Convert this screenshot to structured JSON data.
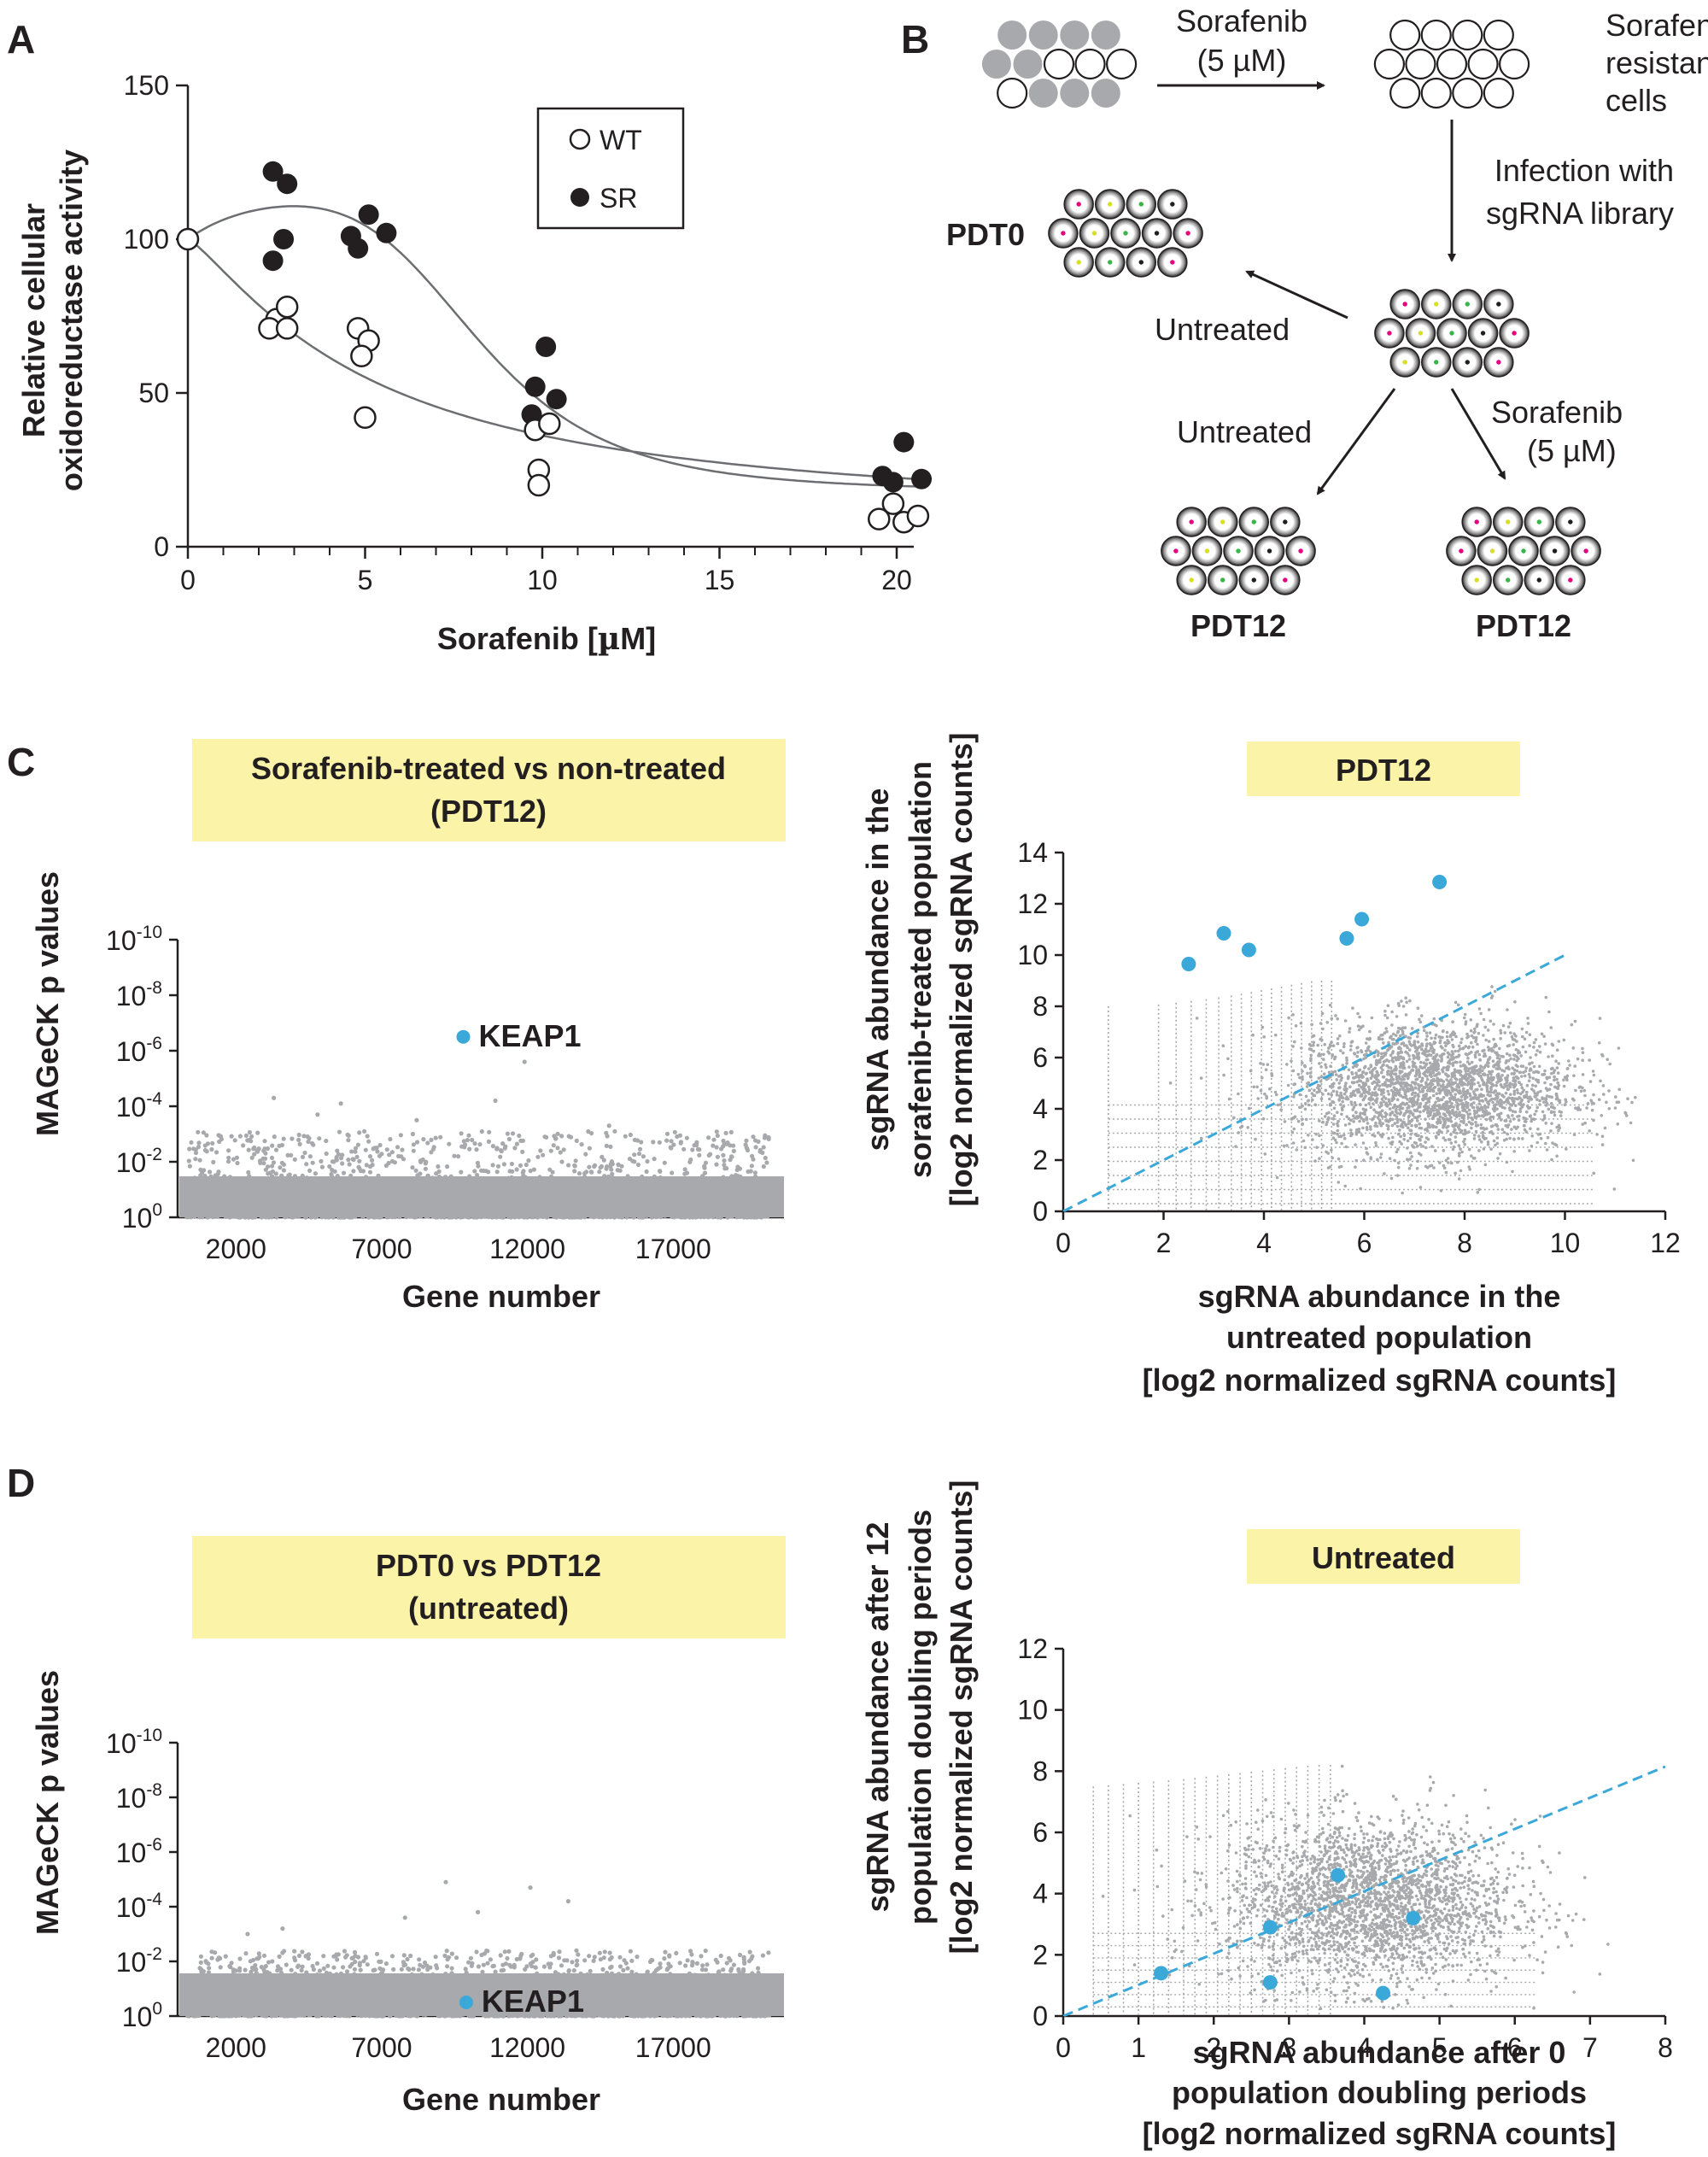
{
  "panels": {
    "a": "A",
    "b": "B",
    "c": "C",
    "d": "D"
  },
  "colors": {
    "accent": "#3aa8d8",
    "gray": "#a7a9ac",
    "highlight_box": "#fbf3a7",
    "ink": "#231f20"
  },
  "panelA": {
    "ylabel_line1": "Relative cellular",
    "ylabel_line2": "oxidoreductase activity",
    "xlabel_pre": "Sorafenib [",
    "xlabel_mu": "µ",
    "xlabel_post": "M]",
    "legend": {
      "wt": "WT",
      "sr": "SR"
    },
    "y_ticks": [
      "0",
      "50",
      "100",
      "150"
    ],
    "x_ticks": [
      "0",
      "5",
      "10",
      "15",
      "20"
    ]
  },
  "chart_data": [
    {
      "type": "scatter",
      "ylabel": "Relative cellular oxidoreductase activity",
      "xlabel": "Sorafenib [µM]",
      "xlim": [
        0,
        20
      ],
      "ylim": [
        0,
        150
      ],
      "x_ticks": [
        0,
        5,
        10,
        15,
        20
      ],
      "y_ticks": [
        0,
        50,
        100,
        150
      ],
      "legend_position": "top-right",
      "series": [
        {
          "name": "WT",
          "marker": "open-circle",
          "points": [
            [
              0,
              100
            ],
            [
              2.5,
              74
            ],
            [
              2.8,
              78
            ],
            [
              2.3,
              71
            ],
            [
              2.8,
              71
            ],
            [
              4.8,
              71
            ],
            [
              5.1,
              67
            ],
            [
              4.9,
              62
            ],
            [
              5,
              42
            ],
            [
              9.8,
              38
            ],
            [
              10.2,
              40
            ],
            [
              9.9,
              25
            ],
            [
              9.9,
              20
            ],
            [
              19.5,
              9
            ],
            [
              19.9,
              14
            ],
            [
              20.2,
              8
            ],
            [
              20.6,
              10
            ]
          ]
        },
        {
          "name": "SR",
          "marker": "filled-circle",
          "points": [
            [
              2.4,
              122
            ],
            [
              2.8,
              118
            ],
            [
              2.7,
              100
            ],
            [
              2.4,
              93
            ],
            [
              4.6,
              101
            ],
            [
              5.1,
              108
            ],
            [
              5.6,
              102
            ],
            [
              4.8,
              97
            ],
            [
              9.8,
              52
            ],
            [
              10.1,
              65
            ],
            [
              10.4,
              48
            ],
            [
              9.7,
              43
            ],
            [
              19.6,
              23
            ],
            [
              20.2,
              34
            ],
            [
              20.7,
              22
            ],
            [
              19.9,
              21
            ]
          ]
        }
      ],
      "fitted_curves": 2
    },
    {
      "type": "scatter",
      "title": "Sorafenib-treated vs non-treated (PDT12)",
      "ylabel": "MAGeCK p values",
      "xlabel": "Gene number",
      "x_ticks": [
        2000,
        7000,
        12000,
        17000
      ],
      "y_ticks": [
        "10^0",
        "10^-2",
        "10^-4",
        "10^-6",
        "10^-8",
        "10^-10"
      ],
      "y_scale": "negative-log10",
      "highlight": {
        "label": "KEAP1",
        "x": 9800,
        "y_exp": -6.5
      }
    },
    {
      "type": "scatter",
      "title": "PDT12",
      "ylabel": "sgRNA abundance in the sorafenib-treated population [log2 normalized sgRNA counts]",
      "xlabel": "sgRNA abundance in the untreated population [log2 normalized sgRNA counts]",
      "xlim": [
        0,
        12
      ],
      "ylim": [
        0,
        14
      ],
      "x_ticks": [
        0,
        2,
        4,
        6,
        8,
        10,
        12
      ],
      "y_ticks": [
        0,
        2,
        4,
        6,
        8,
        10,
        12,
        14
      ],
      "highlight_points": [
        [
          2.5,
          9.65
        ],
        [
          3.2,
          10.85
        ],
        [
          3.7,
          10.2
        ],
        [
          5.65,
          10.65
        ],
        [
          5.95,
          11.4
        ],
        [
          7.5,
          12.85
        ]
      ],
      "diagonal": [
        [
          0,
          0
        ],
        [
          10,
          10
        ]
      ]
    },
    {
      "type": "scatter",
      "title": "PDT0 vs PDT12 (untreated)",
      "ylabel": "MAGeCK p values",
      "xlabel": "Gene number",
      "x_ticks": [
        2000,
        7000,
        12000,
        17000
      ],
      "y_ticks": [
        "10^0",
        "10^-2",
        "10^-4",
        "10^-6",
        "10^-8",
        "10^-10"
      ],
      "y_scale": "negative-log10",
      "highlight": {
        "label": "KEAP1",
        "x": 9900,
        "y_exp": -0.5
      }
    },
    {
      "type": "scatter",
      "title": "Untreated",
      "ylabel": "sgRNA abundance after 12 population doubling periods [log2 normalized sgRNA counts]",
      "xlabel": "sgRNA abundance after 0 population doubling periods [log2 normalized sgRNA counts]",
      "xlim": [
        0,
        8
      ],
      "ylim": [
        0,
        12
      ],
      "x_ticks": [
        0,
        1,
        2,
        3,
        4,
        5,
        6,
        7,
        8
      ],
      "y_ticks": [
        0,
        2,
        4,
        6,
        8,
        10,
        12
      ],
      "highlight_points": [
        [
          1.3,
          1.4
        ],
        [
          2.75,
          1.1
        ],
        [
          2.75,
          2.9
        ],
        [
          3.65,
          4.6
        ],
        [
          4.25,
          0.75
        ],
        [
          4.65,
          3.2
        ]
      ],
      "diagonal": [
        [
          0,
          0
        ],
        [
          8,
          8.15
        ]
      ]
    }
  ],
  "panelB": {
    "arrow1_line1": "Sorafenib",
    "arrow1_line2": "(5 µM)",
    "resistant_line1": "Sorafenib",
    "resistant_line2": "resistant",
    "resistant_line3": "cells",
    "infection_line1": "Infection with",
    "infection_line2": "sgRNA library",
    "pdt0": "PDT0",
    "untreated_left": "Untreated",
    "untreated_bottom": "Untreated",
    "sorafenib_bottom_line1": "Sorafenib",
    "sorafenib_bottom_line2": "(5 µM)",
    "pdt12_left": "PDT12",
    "pdt12_right": "PDT12"
  },
  "panelC": {
    "box_line1": "Sorafenib-treated vs non-treated",
    "box_line2": "(PDT12)",
    "ylabel": "MAGeCK p values",
    "xlabel": "Gene number",
    "x_ticks": [
      "2000",
      "7000",
      "12000",
      "17000"
    ],
    "y_exps": [
      "0",
      "-2",
      "-4",
      "-6",
      "-8",
      "-10"
    ],
    "y_base": "10",
    "keap1": "KEAP1",
    "right_box": "PDT12",
    "right_ylabel_1": "sgRNA abundance in the",
    "right_ylabel_2": "sorafenib-treated population",
    "right_ylabel_3": "[log2 normalized sgRNA counts]",
    "right_xlabel_1": "sgRNA abundance in the",
    "right_xlabel_2": "untreated population",
    "right_xlabel_3": "[log2 normalized sgRNA counts]",
    "right_x_ticks": [
      "0",
      "2",
      "4",
      "6",
      "8",
      "10",
      "12"
    ],
    "right_y_ticks": [
      "0",
      "2",
      "4",
      "6",
      "8",
      "10",
      "12",
      "14"
    ]
  },
  "panelD": {
    "box_line1": "PDT0 vs PDT12",
    "box_line2": "(untreated)",
    "ylabel": "MAGeCK p values",
    "xlabel": "Gene number",
    "x_ticks": [
      "2000",
      "7000",
      "12000",
      "17000"
    ],
    "y_exps": [
      "0",
      "-2",
      "-4",
      "-6",
      "-8",
      "-10"
    ],
    "y_base": "10",
    "keap1": "KEAP1",
    "right_box": "Untreated",
    "right_ylabel_1": "sgRNA abundance after 12",
    "right_ylabel_2": "population doubling periods",
    "right_ylabel_3": "[log2 normalized sgRNA counts]",
    "right_xlabel_1": "sgRNA abundance after 0",
    "right_xlabel_2": "population doubling periods",
    "right_xlabel_3": "[log2 normalized sgRNA counts]",
    "right_x_ticks": [
      "0",
      "1",
      "2",
      "3",
      "4",
      "5",
      "6",
      "7",
      "8"
    ],
    "right_y_ticks": [
      "0",
      "2",
      "4",
      "6",
      "8",
      "10",
      "12"
    ]
  }
}
